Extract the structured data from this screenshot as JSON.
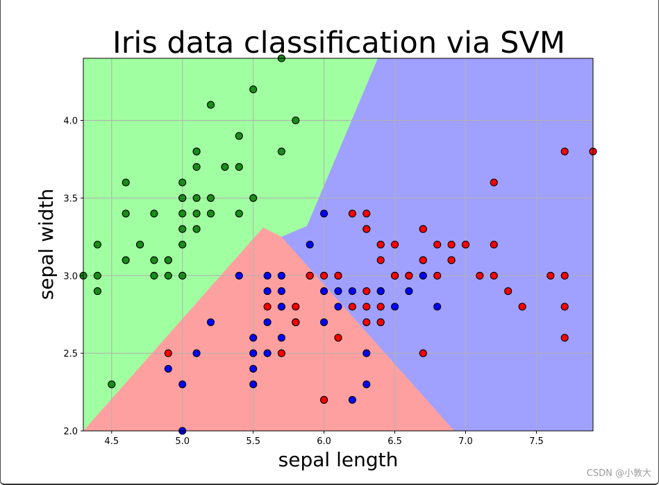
{
  "colors": {
    "region_setosa": "#a0ffa0",
    "region_versicolor": "#a0a0ff",
    "region_virginica": "#ffa0a0",
    "point_setosa": "#1a8c1a",
    "point_versicolor": "#0000ff",
    "point_virginica": "#ff0000",
    "grid": "#b0b0b0"
  },
  "watermark": "CSDN @小敦大",
  "chart_data": {
    "type": "scatter",
    "title": "Iris data classification via SVM",
    "xlabel": "sepal length",
    "ylabel": "sepal width",
    "xlim": [
      4.3,
      7.9
    ],
    "ylim": [
      2.0,
      4.4
    ],
    "xticks": [
      4.5,
      5.0,
      5.5,
      6.0,
      6.5,
      7.0,
      7.5
    ],
    "yticks": [
      2.0,
      2.5,
      3.0,
      3.5,
      4.0
    ],
    "xtick_labels": [
      "4.5",
      "5.0",
      "5.5",
      "6.0",
      "6.5",
      "7.0",
      "7.5"
    ],
    "ytick_labels": [
      "2.0",
      "2.5",
      "3.0",
      "3.5",
      "4.0"
    ],
    "grid": true,
    "decision_regions": [
      {
        "name": "setosa",
        "color": "#a0ffa0",
        "polygon": [
          [
            4.3,
            2.0
          ],
          [
            4.3,
            4.4
          ],
          [
            6.38,
            4.4
          ],
          [
            5.88,
            3.32
          ],
          [
            5.7,
            3.25
          ],
          [
            5.57,
            3.31
          ],
          [
            4.3,
            2.0
          ]
        ]
      },
      {
        "name": "versicolor",
        "color": "#a0a0ff",
        "polygon": [
          [
            6.38,
            4.4
          ],
          [
            7.9,
            4.4
          ],
          [
            7.9,
            2.0
          ],
          [
            6.92,
            2.0
          ],
          [
            5.72,
            3.25
          ],
          [
            5.88,
            3.32
          ]
        ]
      },
      {
        "name": "virginica",
        "color": "#ffa0a0",
        "polygon": [
          [
            4.3,
            2.0
          ],
          [
            5.57,
            3.31
          ],
          [
            5.7,
            3.25
          ],
          [
            6.92,
            2.0
          ]
        ]
      }
    ],
    "series": [
      {
        "name": "setosa",
        "color": "#1a8c1a",
        "points": [
          [
            5.1,
            3.5
          ],
          [
            4.9,
            3.0
          ],
          [
            4.7,
            3.2
          ],
          [
            4.6,
            3.1
          ],
          [
            5.0,
            3.6
          ],
          [
            5.4,
            3.9
          ],
          [
            4.6,
            3.4
          ],
          [
            5.0,
            3.4
          ],
          [
            4.4,
            2.9
          ],
          [
            4.9,
            3.1
          ],
          [
            5.4,
            3.7
          ],
          [
            4.8,
            3.4
          ],
          [
            4.8,
            3.0
          ],
          [
            4.3,
            3.0
          ],
          [
            5.8,
            4.0
          ],
          [
            5.7,
            4.4
          ],
          [
            5.1,
            3.8
          ],
          [
            5.7,
            3.8
          ],
          [
            5.1,
            3.7
          ],
          [
            5.4,
            3.4
          ],
          [
            4.6,
            3.6
          ],
          [
            5.1,
            3.3
          ],
          [
            5.2,
            3.5
          ],
          [
            5.2,
            3.4
          ],
          [
            4.7,
            3.2
          ],
          [
            5.5,
            4.2
          ],
          [
            5.2,
            4.1
          ],
          [
            5.0,
            3.2
          ],
          [
            5.5,
            3.5
          ],
          [
            4.4,
            3.0
          ],
          [
            5.0,
            3.5
          ],
          [
            4.5,
            2.3
          ],
          [
            4.4,
            3.2
          ],
          [
            5.0,
            3.5
          ],
          [
            5.1,
            3.8
          ],
          [
            5.3,
            3.7
          ],
          [
            5.0,
            3.3
          ],
          [
            4.8,
            3.1
          ],
          [
            4.9,
            3.1
          ],
          [
            5.1,
            3.4
          ],
          [
            5.0,
            3.0
          ]
        ]
      },
      {
        "name": "versicolor",
        "color": "#0000ff",
        "points": [
          [
            7.0,
            3.2
          ],
          [
            6.4,
            3.2
          ],
          [
            6.9,
            3.1
          ],
          [
            5.5,
            2.3
          ],
          [
            6.5,
            2.8
          ],
          [
            5.7,
            2.8
          ],
          [
            6.3,
            3.3
          ],
          [
            4.9,
            2.4
          ],
          [
            6.6,
            2.9
          ],
          [
            5.2,
            2.7
          ],
          [
            5.0,
            2.0
          ],
          [
            5.9,
            3.0
          ],
          [
            6.0,
            2.2
          ],
          [
            6.1,
            2.9
          ],
          [
            5.6,
            2.9
          ],
          [
            6.7,
            3.1
          ],
          [
            5.6,
            3.0
          ],
          [
            5.8,
            2.7
          ],
          [
            6.2,
            2.2
          ],
          [
            5.6,
            2.5
          ],
          [
            5.9,
            3.2
          ],
          [
            6.1,
            2.8
          ],
          [
            6.3,
            2.5
          ],
          [
            6.4,
            2.9
          ],
          [
            6.6,
            3.0
          ],
          [
            6.8,
            2.8
          ],
          [
            6.0,
            2.9
          ],
          [
            5.7,
            2.6
          ],
          [
            5.5,
            2.4
          ],
          [
            5.8,
            2.7
          ],
          [
            6.0,
            2.7
          ],
          [
            5.4,
            3.0
          ],
          [
            6.0,
            3.4
          ],
          [
            6.3,
            2.3
          ],
          [
            5.5,
            2.5
          ],
          [
            5.5,
            2.6
          ],
          [
            5.0,
            2.3
          ],
          [
            5.7,
            3.0
          ],
          [
            5.7,
            2.9
          ],
          [
            6.2,
            2.9
          ],
          [
            5.1,
            2.5
          ],
          [
            5.7,
            2.8
          ],
          [
            6.1,
            3.0
          ],
          [
            6.4,
            2.9
          ],
          [
            5.6,
            2.7
          ],
          [
            6.7,
            3.0
          ]
        ]
      },
      {
        "name": "virginica",
        "color": "#ff0000",
        "points": [
          [
            6.3,
            3.3
          ],
          [
            5.8,
            2.7
          ],
          [
            7.1,
            3.0
          ],
          [
            6.3,
            2.9
          ],
          [
            6.5,
            3.0
          ],
          [
            7.6,
            3.0
          ],
          [
            4.9,
            2.5
          ],
          [
            7.3,
            2.9
          ],
          [
            6.7,
            2.5
          ],
          [
            7.2,
            3.6
          ],
          [
            6.5,
            3.2
          ],
          [
            6.4,
            2.7
          ],
          [
            6.8,
            3.0
          ],
          [
            5.7,
            2.5
          ],
          [
            5.8,
            2.8
          ],
          [
            6.4,
            3.2
          ],
          [
            7.7,
            3.8
          ],
          [
            7.7,
            2.6
          ],
          [
            6.0,
            2.2
          ],
          [
            6.9,
            3.2
          ],
          [
            5.6,
            2.8
          ],
          [
            7.7,
            2.8
          ],
          [
            6.3,
            2.7
          ],
          [
            6.7,
            3.3
          ],
          [
            7.2,
            3.2
          ],
          [
            6.2,
            2.8
          ],
          [
            6.1,
            3.0
          ],
          [
            6.4,
            2.8
          ],
          [
            7.2,
            3.0
          ],
          [
            7.4,
            2.8
          ],
          [
            7.9,
            3.8
          ],
          [
            6.3,
            2.8
          ],
          [
            6.1,
            2.6
          ],
          [
            7.7,
            3.0
          ],
          [
            6.3,
            3.4
          ],
          [
            6.4,
            3.1
          ],
          [
            6.0,
            3.0
          ],
          [
            6.9,
            3.1
          ],
          [
            6.7,
            3.1
          ],
          [
            5.8,
            2.7
          ],
          [
            6.8,
            3.2
          ],
          [
            6.7,
            3.3
          ],
          [
            6.5,
            3.0
          ],
          [
            6.2,
            3.4
          ],
          [
            5.9,
            3.0
          ],
          [
            6.6,
            3.0
          ],
          [
            7.0,
            3.2
          ],
          [
            6.4,
            2.7
          ]
        ]
      }
    ]
  }
}
